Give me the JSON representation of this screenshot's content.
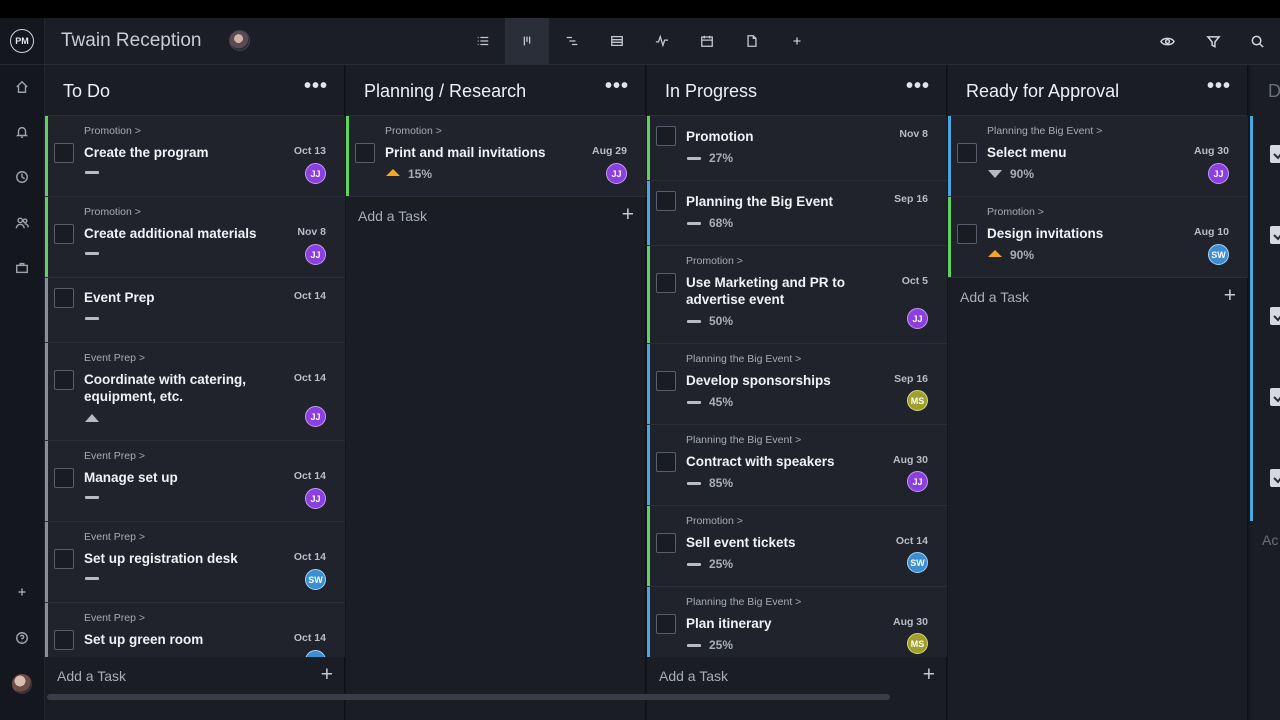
{
  "app": {
    "logo": "PM",
    "project_title": "Twain Reception"
  },
  "rail": {
    "icons": [
      "home-icon",
      "bell-icon",
      "clock-icon",
      "people-icon",
      "briefcase-icon",
      "plus-icon",
      "help-icon",
      "user-avatar"
    ]
  },
  "toolbar": {
    "view_icons": [
      "list-view-icon",
      "board-view-icon",
      "gantt-view-icon",
      "sheet-view-icon",
      "dashboard-icon",
      "calendar-icon",
      "document-icon",
      "add-view-icon"
    ],
    "active_view": "board-view-icon",
    "right_icons": [
      "eye-icon",
      "filter-icon",
      "search-icon"
    ]
  },
  "columns": [
    {
      "title": "To Do",
      "cards": [
        {
          "crumb": "Promotion >",
          "name": "Create the program",
          "date": "Oct 13",
          "progress": "",
          "avatar": "JJ",
          "bar": "#5fd35f"
        },
        {
          "crumb": "Promotion >",
          "name": "Create additional materials",
          "date": "Nov 8",
          "progress": "",
          "avatar": "JJ",
          "bar": "#5fd35f"
        },
        {
          "crumb": "",
          "name": "Event Prep",
          "date": "Oct 14",
          "progress": "",
          "avatar": "",
          "bar": "#8c8f98"
        },
        {
          "crumb": "Event Prep >",
          "name": "Coordinate with catering, equipment, etc.",
          "date": "Oct 14",
          "progress": "",
          "avatar": "JJ",
          "bar": "#8c8f98"
        },
        {
          "crumb": "Event Prep >",
          "name": "Manage set up",
          "date": "Oct 14",
          "progress": "",
          "avatar": "JJ",
          "bar": "#8c8f98"
        },
        {
          "crumb": "Event Prep >",
          "name": "Set up registration desk",
          "date": "Oct 14",
          "progress": "",
          "avatar": "SW",
          "bar": "#8c8f98"
        },
        {
          "crumb": "Event Prep >",
          "name": "Set up green room",
          "date": "Oct 14",
          "progress": "",
          "avatar": "",
          "bar": "#8c8f98"
        }
      ],
      "add_task": "Add a Task"
    },
    {
      "title": "Planning / Research",
      "cards": [
        {
          "crumb": "Promotion >",
          "name": "Print and mail invitations",
          "date": "Aug 29",
          "progress": "15%",
          "avatar": "JJ",
          "bar": "#5fd35f"
        }
      ],
      "add_task": "Add a Task"
    },
    {
      "title": "In Progress",
      "cards": [
        {
          "crumb": "",
          "name": "Promotion",
          "date": "Nov 8",
          "progress": "27%",
          "avatar": "",
          "bar": "#5fd35f"
        },
        {
          "crumb": "",
          "name": "Planning the Big Event",
          "date": "Sep 16",
          "progress": "68%",
          "avatar": "",
          "bar": "#4aa8e0"
        },
        {
          "crumb": "Promotion >",
          "name": "Use Marketing and PR to advertise event",
          "date": "Oct 5",
          "progress": "50%",
          "avatar": "JJ",
          "bar": "#5fd35f"
        },
        {
          "crumb": "Planning the Big Event >",
          "name": "Develop sponsorships",
          "date": "Sep 16",
          "progress": "45%",
          "avatar": "MS",
          "bar": "#4aa8e0"
        },
        {
          "crumb": "Planning the Big Event >",
          "name": "Contract with speakers",
          "date": "Aug 30",
          "progress": "85%",
          "avatar": "JJ",
          "bar": "#4aa8e0"
        },
        {
          "crumb": "Promotion >",
          "name": "Sell event tickets",
          "date": "Oct 14",
          "progress": "25%",
          "avatar": "SW",
          "bar": "#5fd35f"
        },
        {
          "crumb": "Planning the Big Event >",
          "name": "Plan itinerary",
          "date": "Aug 30",
          "progress": "25%",
          "avatar": "MS",
          "bar": "#4aa8e0"
        }
      ],
      "add_task": "Add a Task"
    },
    {
      "title": "Ready for Approval",
      "cards": [
        {
          "crumb": "Planning the Big Event >",
          "name": "Select menu",
          "date": "Aug 30",
          "progress": "90%",
          "avatar": "JJ",
          "bar": "#4aa8e0"
        },
        {
          "crumb": "Promotion >",
          "name": "Design invitations",
          "date": "Aug 10",
          "progress": "90%",
          "avatar": "SW",
          "bar": "#5fd35f"
        }
      ],
      "add_task": "Add a Task"
    },
    {
      "title": "D",
      "add_task": "Ac"
    }
  ]
}
